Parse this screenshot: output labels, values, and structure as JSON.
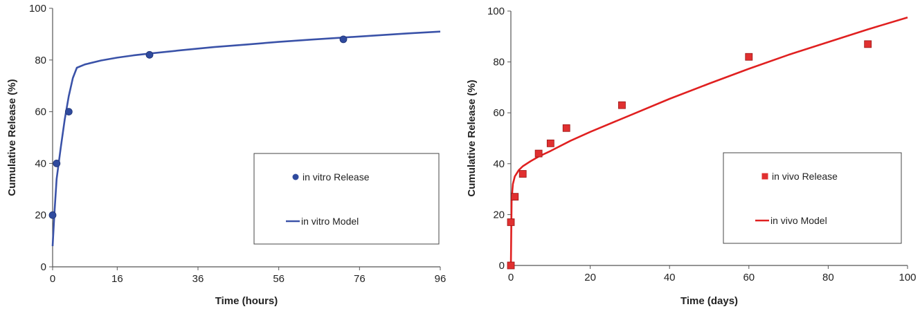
{
  "chart_data": [
    {
      "type": "scatter",
      "xlabel": "Time (hours)",
      "ylabel": "Cumulative Release (%)",
      "xlim": [
        0,
        96
      ],
      "ylim": [
        0,
        100
      ],
      "xticks": [
        0,
        16,
        36,
        56,
        76,
        96
      ],
      "yticks": [
        0,
        20,
        40,
        60,
        80,
        100
      ],
      "grid": false,
      "legend_position": "center-right",
      "series": [
        {
          "name": "in vitro Release",
          "kind": "scatter",
          "marker": "circle",
          "color": "#2f4a9e",
          "x": [
            0,
            1,
            4,
            24,
            72
          ],
          "y": [
            20,
            40,
            60,
            82,
            88
          ]
        },
        {
          "name": "in vitro Model",
          "kind": "line",
          "color": "#3a52a8",
          "x": [
            0,
            0.5,
            1,
            2,
            3,
            4,
            5,
            6,
            8,
            12,
            16,
            20,
            24,
            32,
            40,
            48,
            56,
            64,
            72,
            80,
            88,
            96
          ],
          "y": [
            8,
            22,
            34,
            46,
            57,
            66,
            73,
            77,
            78.3,
            79.8,
            80.9,
            81.8,
            82.5,
            83.8,
            85,
            86,
            87,
            87.9,
            88.7,
            89.5,
            90.3,
            91
          ]
        }
      ]
    },
    {
      "type": "scatter",
      "xlabel": "Time (days)",
      "ylabel": "Cumulative Release (%)",
      "xlim": [
        0,
        100
      ],
      "ylim": [
        0,
        100
      ],
      "xticks": [
        0,
        20,
        40,
        60,
        80,
        100
      ],
      "yticks": [
        0,
        20,
        40,
        60,
        80,
        100
      ],
      "grid": false,
      "legend_position": "center-right",
      "series": [
        {
          "name": "in vivo Release",
          "kind": "scatter",
          "marker": "square",
          "color": "#e03030",
          "x": [
            0,
            0,
            1,
            3,
            7,
            10,
            14,
            28,
            60,
            90
          ],
          "y": [
            0,
            17,
            27,
            36,
            44,
            48,
            54,
            63,
            82,
            87
          ]
        },
        {
          "name": "in vivo Model",
          "kind": "line",
          "color": "#e02020",
          "x": [
            0,
            0.2,
            0.5,
            1,
            2,
            3,
            5,
            7,
            10,
            15,
            20,
            30,
            40,
            50,
            60,
            70,
            80,
            90,
            100
          ],
          "y": [
            0,
            26,
            32,
            35,
            37.5,
            39,
            41,
            42.8,
            45,
            49,
            52.5,
            59,
            65.5,
            71.5,
            77.3,
            82.8,
            87.8,
            92.8,
            97.5
          ]
        }
      ]
    }
  ]
}
